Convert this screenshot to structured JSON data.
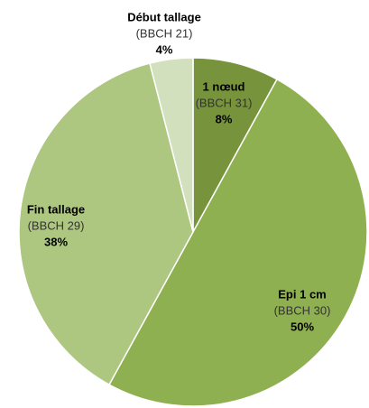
{
  "chart_data": {
    "type": "pie",
    "categories": [
      "1 nœud",
      "Epi 1 cm",
      "Fin tallage",
      "Début tallage"
    ],
    "category_notes": [
      "(BBCH 31)",
      "(BBCH 30)",
      "(BBCH 29)",
      "(BBCH 21)"
    ],
    "values": [
      8,
      50,
      38,
      4
    ],
    "value_labels": [
      "8%",
      "50%",
      "38%",
      "4%"
    ],
    "colors": [
      "#77933c",
      "#8fb050",
      "#adc680",
      "#d2e0bd"
    ]
  }
}
